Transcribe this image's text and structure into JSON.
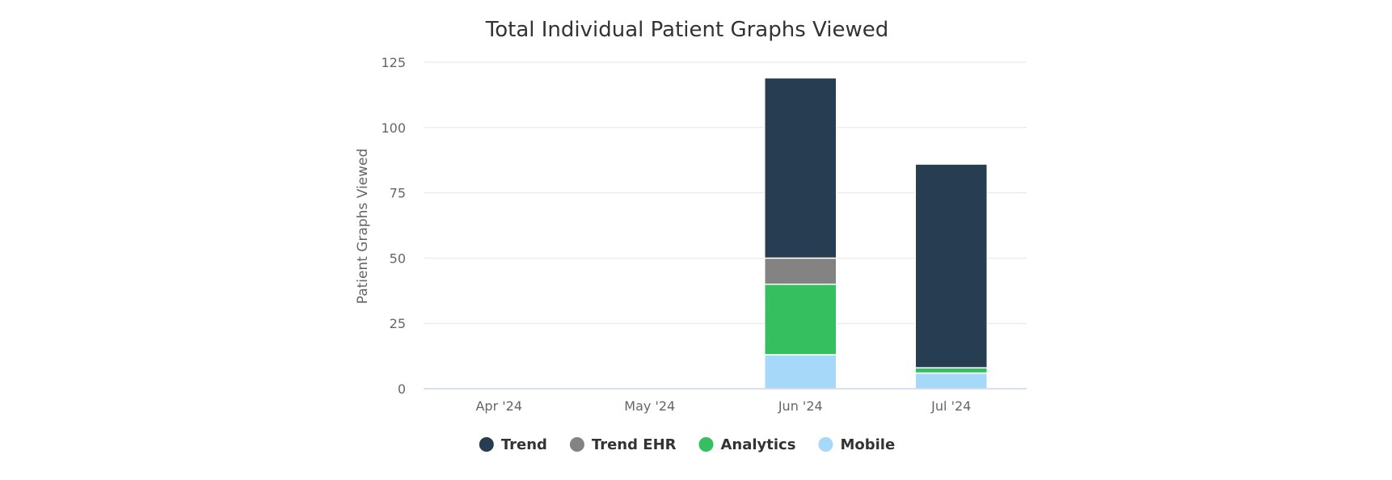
{
  "chart_data": {
    "type": "bar",
    "stacked": true,
    "title": "Total Individual Patient Graphs Viewed",
    "xlabel": "",
    "ylabel": "Patient Graphs Viewed",
    "categories": [
      "Apr '24",
      "May '24",
      "Jun '24",
      "Jul '24"
    ],
    "ylim": [
      0,
      125
    ],
    "yticks": [
      0,
      25,
      50,
      75,
      100,
      125
    ],
    "grid": true,
    "legend": "bottom-center",
    "series": [
      {
        "name": "Mobile",
        "color": "#a6d8fa",
        "values": [
          0,
          0,
          13,
          6
        ]
      },
      {
        "name": "Analytics",
        "color": "#36bf5e",
        "values": [
          0,
          0,
          27,
          2
        ]
      },
      {
        "name": "Trend EHR",
        "color": "#838383",
        "values": [
          0,
          0,
          10,
          0
        ]
      },
      {
        "name": "Trend",
        "color": "#263d52",
        "values": [
          0,
          0,
          69,
          78
        ]
      }
    ],
    "legend_order": [
      "Trend",
      "Trend EHR",
      "Analytics",
      "Mobile"
    ]
  }
}
